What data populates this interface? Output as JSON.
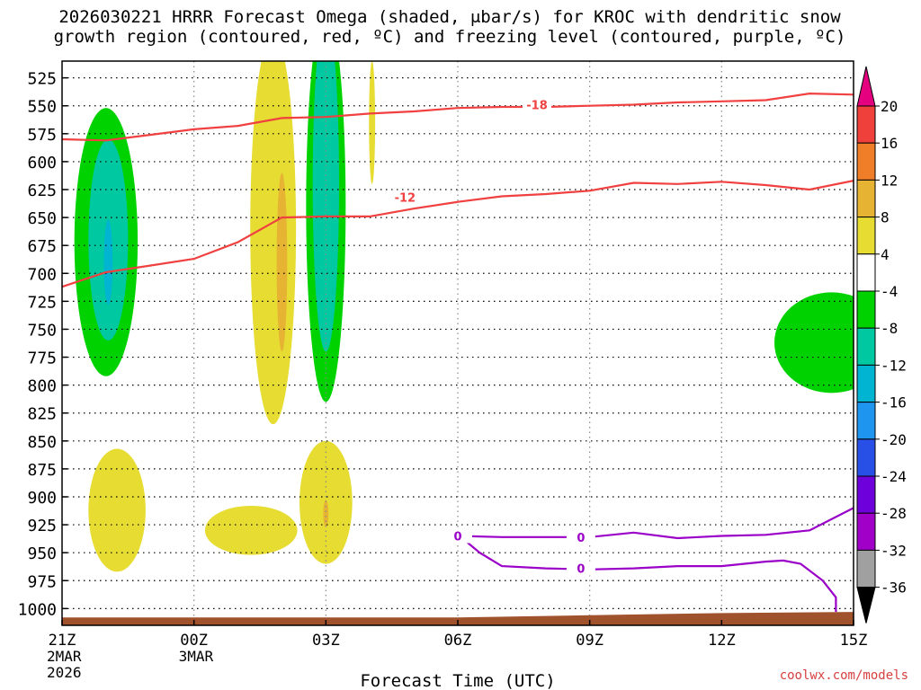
{
  "chart_data": {
    "type": "heatmap",
    "title_line1": "2026030221 HRRR Forecast Omega (shaded, μbar/s) for KROC with dendritic snow",
    "title_line2": "growth region (contoured, red, ºC) and freezing level (contoured, purple, ºC)",
    "xlabel": "Forecast Time (UTC)",
    "x_ticks": [
      {
        "hour": 0,
        "label": "21Z",
        "sub1": "2MAR",
        "sub2": "2026"
      },
      {
        "hour": 3,
        "label": "00Z",
        "sub1": "3MAR",
        "sub2": ""
      },
      {
        "hour": 6,
        "label": "03Z",
        "sub1": "",
        "sub2": ""
      },
      {
        "hour": 9,
        "label": "06Z",
        "sub1": "",
        "sub2": ""
      },
      {
        "hour": 12,
        "label": "09Z",
        "sub1": "",
        "sub2": ""
      },
      {
        "hour": 15,
        "label": "12Z",
        "sub1": "",
        "sub2": ""
      },
      {
        "hour": 18,
        "label": "15Z",
        "sub1": "",
        "sub2": ""
      }
    ],
    "x_range_hours": [
      0,
      18
    ],
    "y_ticks": [
      525,
      550,
      575,
      600,
      625,
      650,
      675,
      700,
      725,
      750,
      775,
      800,
      825,
      850,
      875,
      900,
      925,
      950,
      975,
      1000
    ],
    "y_range_hPa": [
      510,
      1015
    ],
    "grid": true,
    "colorbar": {
      "labels": [
        "20",
        "16",
        "12",
        "8",
        "4",
        "-4",
        "-8",
        "-12",
        "-16",
        "-20",
        "-24",
        "-28",
        "-32",
        "-36"
      ],
      "colors": [
        "#e4007e",
        "#f0403c",
        "#f07d28",
        "#e6b432",
        "#e6dc32",
        "#ffffff",
        "#00d200",
        "#00c8a0",
        "#00b4d2",
        "#1e96f0",
        "#2850e6",
        "#6e00dc",
        "#a000c8",
        "#a0a0a0",
        "#000000"
      ]
    },
    "contours": [
      {
        "label": "-18",
        "color": "#f04040",
        "points": [
          [
            0,
            580
          ],
          [
            1,
            581
          ],
          [
            2,
            576
          ],
          [
            3,
            571
          ],
          [
            4,
            568
          ],
          [
            5,
            561
          ],
          [
            6,
            560
          ],
          [
            7,
            557
          ],
          [
            8,
            555
          ],
          [
            9,
            552
          ],
          [
            10,
            551
          ],
          [
            11,
            551
          ],
          [
            12,
            550
          ],
          [
            13,
            549
          ],
          [
            14,
            547
          ],
          [
            15,
            546
          ],
          [
            16,
            545
          ],
          [
            17,
            539
          ],
          [
            18,
            540
          ]
        ]
      },
      {
        "label": "-12",
        "color": "#f04040",
        "points": [
          [
            0,
            712
          ],
          [
            1,
            699
          ],
          [
            2,
            693
          ],
          [
            3,
            687
          ],
          [
            4,
            672
          ],
          [
            5,
            650
          ],
          [
            6,
            649
          ],
          [
            7,
            649
          ],
          [
            8,
            642
          ],
          [
            9,
            636
          ],
          [
            10,
            631
          ],
          [
            11,
            629
          ],
          [
            12,
            626
          ],
          [
            13,
            619
          ],
          [
            14,
            620
          ],
          [
            15,
            618
          ],
          [
            16,
            621
          ],
          [
            17,
            625
          ],
          [
            18,
            617
          ]
        ]
      },
      {
        "label": "0",
        "color": "#9a00c8",
        "points": [
          [
            9,
            935
          ],
          [
            10,
            936
          ],
          [
            11,
            936
          ],
          [
            12,
            936
          ],
          [
            13,
            932
          ],
          [
            14,
            937
          ],
          [
            15,
            935
          ],
          [
            16,
            934
          ],
          [
            17,
            930
          ],
          [
            18,
            910
          ]
        ]
      },
      {
        "label": "0",
        "color": "#9a00c8",
        "points": [
          [
            9.1,
            937
          ],
          [
            9.5,
            950
          ],
          [
            10,
            962
          ],
          [
            11,
            964
          ],
          [
            12,
            965
          ],
          [
            13,
            964
          ],
          [
            14,
            962
          ],
          [
            15,
            962
          ],
          [
            16,
            958
          ],
          [
            16.4,
            957
          ],
          [
            16.8,
            960
          ],
          [
            17.3,
            975
          ],
          [
            17.6,
            990
          ],
          [
            17.6,
            1003
          ]
        ]
      }
    ],
    "shaded_regions": [
      {
        "value": -4,
        "color": "#00d200",
        "cx": 1.0,
        "cy": 672,
        "rx": 0.72,
        "ry": 120
      },
      {
        "value": -12,
        "color": "#00c8a0",
        "cx": 1.05,
        "cy": 670,
        "rx": 0.45,
        "ry": 90
      },
      {
        "value": -16,
        "color": "#00b4d2",
        "cx": 1.05,
        "cy": 690,
        "rx": 0.1,
        "ry": 38
      },
      {
        "value": 4,
        "color": "#e6dc32",
        "cx": 4.8,
        "cy": 660,
        "rx": 0.52,
        "ry": 175
      },
      {
        "value": 8,
        "color": "#e6b432",
        "cx": 5.0,
        "cy": 690,
        "rx": 0.12,
        "ry": 80
      },
      {
        "value": -4,
        "color": "#00d200",
        "cx": 6.0,
        "cy": 640,
        "rx": 0.45,
        "ry": 175
      },
      {
        "value": -12,
        "color": "#00c8a0",
        "cx": 6.0,
        "cy": 620,
        "rx": 0.3,
        "ry": 150
      },
      {
        "value": 4,
        "color": "#e6dc32",
        "cx": 7.05,
        "cy": 565,
        "rx": 0.07,
        "ry": 55
      },
      {
        "value": 4,
        "color": "#e6dc32",
        "cx": 1.25,
        "cy": 912,
        "rx": 0.65,
        "ry": 55
      },
      {
        "value": 4,
        "color": "#e6dc32",
        "cx": 4.3,
        "cy": 930,
        "rx": 1.05,
        "ry": 22
      },
      {
        "value": 4,
        "color": "#e6dc32",
        "cx": 6.0,
        "cy": 905,
        "rx": 0.6,
        "ry": 55
      },
      {
        "value": 8,
        "color": "#e6b432",
        "cx": 6.0,
        "cy": 915,
        "rx": 0.06,
        "ry": 12
      },
      {
        "value": -4,
        "color": "#00d200",
        "cx": 17.5,
        "cy": 762,
        "rx": 1.3,
        "ry": 45
      }
    ],
    "terrain_color": "#a0522d"
  },
  "credit": "coolwx.com/models"
}
